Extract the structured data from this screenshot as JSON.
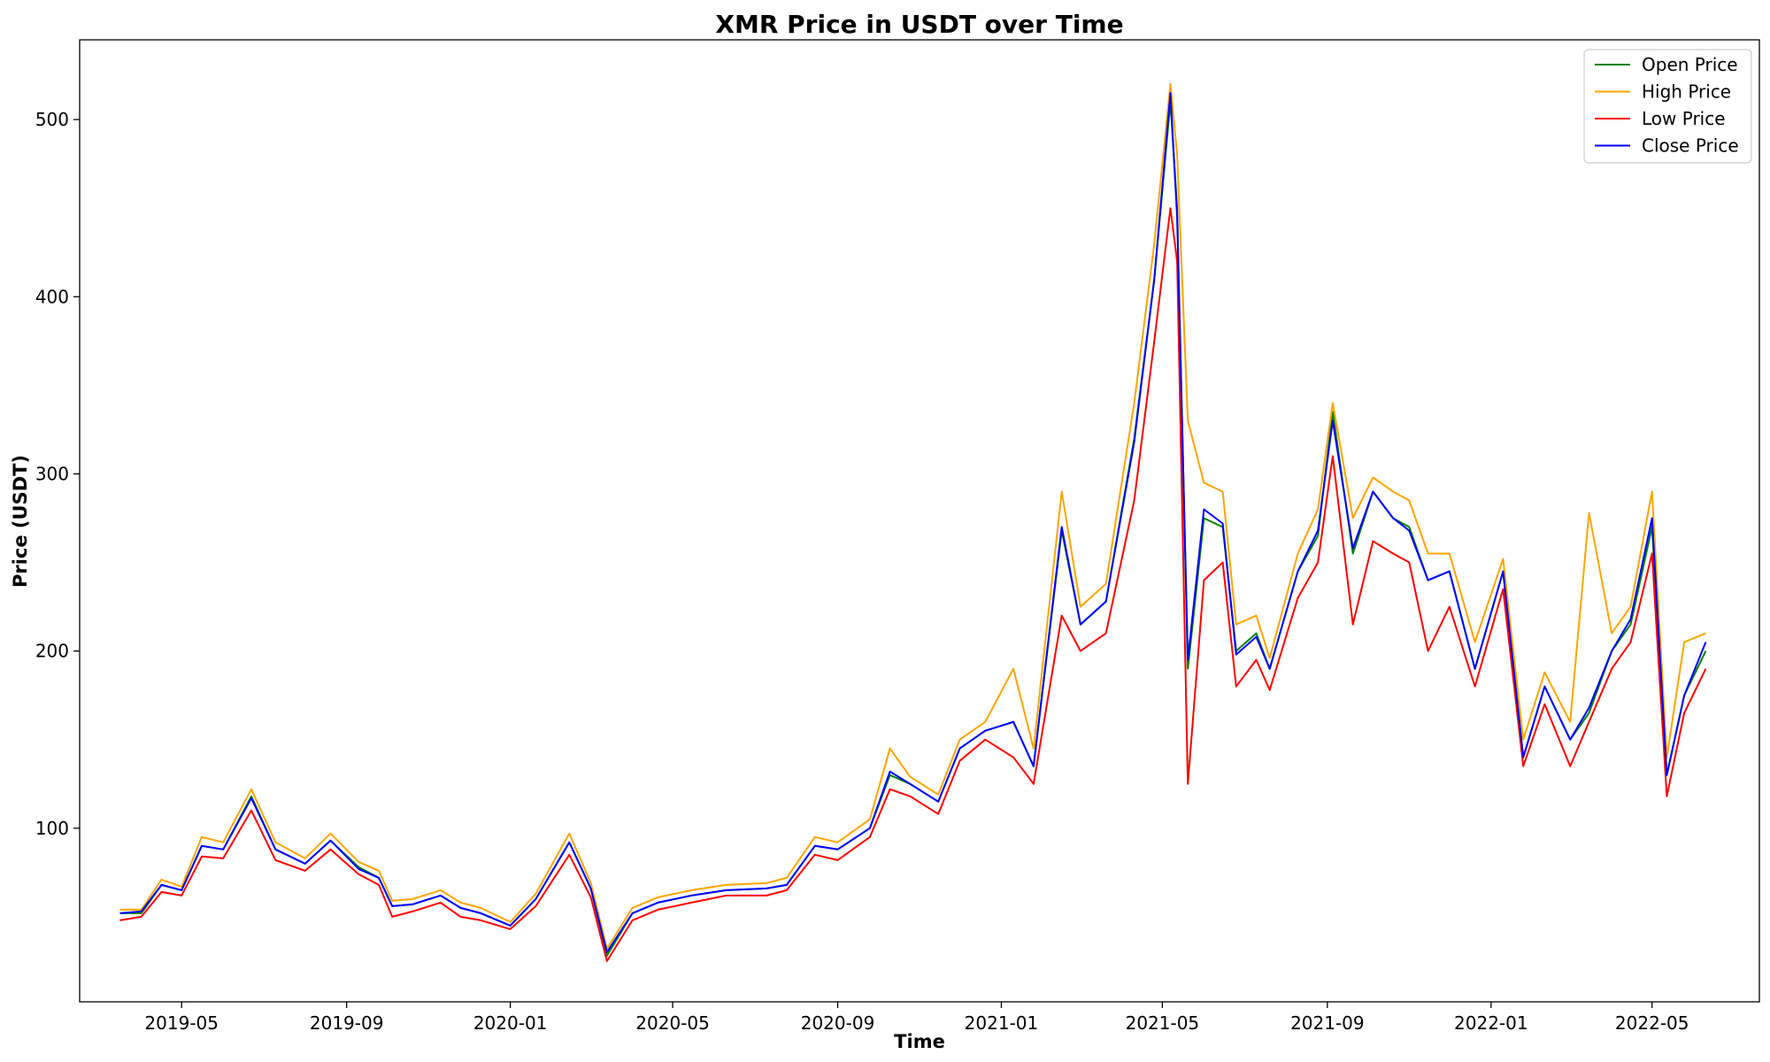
{
  "chart_data": {
    "type": "line",
    "title": "XMR Price in USDT over Time",
    "xlabel": "Time",
    "ylabel": "Price (USDT)",
    "x_tick_labels": [
      "2019-05",
      "2019-09",
      "2020-01",
      "2020-05",
      "2020-09",
      "2021-01",
      "2021-05",
      "2021-09",
      "2022-01",
      "2022-05"
    ],
    "x_tick_dates": [
      "2019-05-01",
      "2019-09-01",
      "2020-01-01",
      "2020-05-01",
      "2020-09-01",
      "2021-01-01",
      "2021-05-01",
      "2021-09-01",
      "2022-01-01",
      "2022-05-01"
    ],
    "y_ticks": [
      100,
      200,
      300,
      400,
      500
    ],
    "xlim": [
      "2019-02-14",
      "2022-07-20"
    ],
    "ylim": [
      2,
      545
    ],
    "grid": false,
    "legend_position": "top-right",
    "x": [
      "2019-03-16",
      "2019-04-01",
      "2019-04-16",
      "2019-05-01",
      "2019-05-16",
      "2019-06-01",
      "2019-06-22",
      "2019-07-10",
      "2019-08-01",
      "2019-08-20",
      "2019-09-10",
      "2019-09-25",
      "2019-10-05",
      "2019-10-20",
      "2019-11-10",
      "2019-11-25",
      "2019-12-10",
      "2020-01-01",
      "2020-01-20",
      "2020-02-14",
      "2020-03-01",
      "2020-03-13",
      "2020-04-01",
      "2020-04-20",
      "2020-05-15",
      "2020-06-10",
      "2020-07-10",
      "2020-07-25",
      "2020-08-15",
      "2020-09-01",
      "2020-09-25",
      "2020-10-10",
      "2020-10-25",
      "2020-11-15",
      "2020-12-01",
      "2020-12-20",
      "2021-01-10",
      "2021-01-25",
      "2021-02-15",
      "2021-03-01",
      "2021-03-20",
      "2021-04-10",
      "2021-04-25",
      "2021-05-07",
      "2021-05-12",
      "2021-05-20",
      "2021-06-01",
      "2021-06-15",
      "2021-06-25",
      "2021-07-10",
      "2021-07-20",
      "2021-08-10",
      "2021-08-25",
      "2021-09-05",
      "2021-09-20",
      "2021-10-05",
      "2021-10-20",
      "2021-11-01",
      "2021-11-15",
      "2021-12-01",
      "2021-12-20",
      "2022-01-10",
      "2022-01-25",
      "2022-02-10",
      "2022-03-01",
      "2022-03-15",
      "2022-04-01",
      "2022-04-15",
      "2022-05-01",
      "2022-05-12",
      "2022-05-25",
      "2022-06-10"
    ],
    "series": [
      {
        "name": "Open Price",
        "color": "#008000",
        "values": [
          52,
          52,
          68,
          65,
          90,
          88,
          118,
          88,
          80,
          93,
          78,
          72,
          56,
          57,
          62,
          55,
          52,
          45,
          60,
          92,
          66,
          28,
          52,
          58,
          62,
          65,
          66,
          68,
          90,
          88,
          100,
          130,
          125,
          115,
          145,
          155,
          160,
          135,
          268,
          215,
          228,
          320,
          410,
          510,
          450,
          190,
          275,
          270,
          200,
          210,
          190,
          245,
          265,
          335,
          255,
          290,
          275,
          270,
          240,
          245,
          190,
          245,
          140,
          180,
          150,
          165,
          200,
          215,
          270,
          130,
          175,
          200
        ]
      },
      {
        "name": "High Price",
        "color": "#FFA500",
        "values": [
          54,
          54,
          71,
          67,
          95,
          92,
          122,
          92,
          83,
          97,
          81,
          76,
          59,
          60,
          65,
          58,
          55,
          47,
          63,
          97,
          69,
          32,
          55,
          61,
          65,
          68,
          69,
          72,
          95,
          92,
          105,
          145,
          129,
          119,
          150,
          160,
          190,
          145,
          290,
          225,
          238,
          340,
          430,
          520,
          480,
          330,
          295,
          290,
          215,
          220,
          196,
          255,
          280,
          340,
          275,
          298,
          290,
          285,
          255,
          255,
          205,
          252,
          150,
          188,
          160,
          278,
          210,
          225,
          290,
          140,
          205,
          210
        ]
      },
      {
        "name": "Low Price",
        "color": "#FF0000",
        "values": [
          48,
          50,
          64,
          62,
          84,
          83,
          110,
          82,
          76,
          88,
          74,
          68,
          50,
          53,
          58,
          50,
          48,
          43,
          56,
          85,
          61,
          25,
          48,
          54,
          58,
          62,
          62,
          65,
          85,
          82,
          95,
          122,
          118,
          108,
          138,
          150,
          140,
          125,
          220,
          200,
          210,
          285,
          375,
          450,
          420,
          125,
          240,
          250,
          180,
          195,
          178,
          230,
          250,
          310,
          215,
          262,
          255,
          250,
          200,
          225,
          180,
          235,
          135,
          170,
          135,
          160,
          190,
          205,
          255,
          118,
          165,
          190
        ]
      },
      {
        "name": "Close Price",
        "color": "#0000FF",
        "values": [
          52,
          53,
          68,
          65,
          90,
          88,
          117,
          88,
          80,
          93,
          77,
          72,
          56,
          57,
          62,
          55,
          52,
          45,
          60,
          92,
          66,
          30,
          52,
          58,
          62,
          65,
          66,
          68,
          90,
          88,
          100,
          132,
          125,
          115,
          145,
          155,
          160,
          135,
          270,
          215,
          228,
          318,
          410,
          515,
          445,
          195,
          280,
          272,
          198,
          208,
          190,
          245,
          268,
          330,
          258,
          290,
          275,
          268,
          240,
          245,
          190,
          245,
          140,
          180,
          150,
          168,
          200,
          218,
          275,
          130,
          175,
          205
        ]
      }
    ]
  }
}
